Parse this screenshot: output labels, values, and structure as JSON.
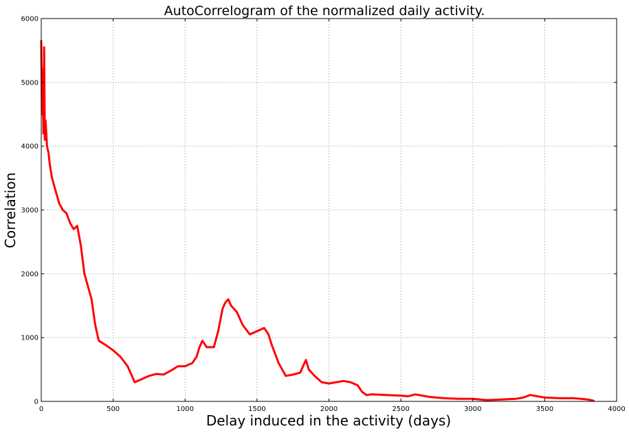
{
  "chart_data": {
    "type": "line",
    "title": "AutoCorrelogram of the normalized daily activity.",
    "xlabel": "Delay induced in the activity (days)",
    "ylabel": "Correlation",
    "xlim": [
      0,
      4000
    ],
    "ylim": [
      0,
      6000
    ],
    "xticks": [
      0,
      500,
      1000,
      1500,
      2000,
      2500,
      3000,
      3500,
      4000
    ],
    "yticks": [
      0,
      1000,
      2000,
      3000,
      4000,
      5000,
      6000
    ],
    "xtick_labels": [
      "0",
      "500",
      "1000",
      "1500",
      "2000",
      "2500",
      "3000",
      "3500",
      "4000"
    ],
    "ytick_labels": [
      "0",
      "1000",
      "2000",
      "3000",
      "4000",
      "5000",
      "6000"
    ],
    "grid": true,
    "series": [
      {
        "color": "#ff0000",
        "x": [
          0,
          5,
          10,
          15,
          20,
          25,
          30,
          40,
          50,
          60,
          75,
          100,
          125,
          150,
          175,
          200,
          225,
          250,
          275,
          300,
          325,
          350,
          375,
          400,
          450,
          500,
          550,
          600,
          650,
          700,
          750,
          800,
          850,
          900,
          950,
          1000,
          1050,
          1080,
          1100,
          1120,
          1150,
          1200,
          1230,
          1260,
          1280,
          1300,
          1320,
          1340,
          1360,
          1400,
          1450,
          1500,
          1550,
          1580,
          1600,
          1650,
          1700,
          1750,
          1800,
          1820,
          1840,
          1860,
          1880,
          1900,
          1950,
          2000,
          2050,
          2100,
          2150,
          2200,
          2230,
          2260,
          2300,
          2400,
          2500,
          2550,
          2600,
          2700,
          2800,
          2900,
          3000,
          3050,
          3100,
          3200,
          3300,
          3350,
          3400,
          3450,
          3500,
          3600,
          3700,
          3750,
          3800,
          3840
        ],
        "y": [
          5650,
          4500,
          5200,
          4200,
          5550,
          4100,
          4400,
          4000,
          3900,
          3700,
          3500,
          3300,
          3100,
          3000,
          2950,
          2800,
          2700,
          2750,
          2450,
          2000,
          1800,
          1600,
          1200,
          950,
          880,
          800,
          700,
          550,
          300,
          350,
          400,
          430,
          420,
          480,
          550,
          550,
          600,
          700,
          850,
          950,
          850,
          850,
          1100,
          1450,
          1550,
          1600,
          1500,
          1450,
          1400,
          1200,
          1050,
          1100,
          1150,
          1050,
          900,
          600,
          400,
          420,
          450,
          550,
          650,
          500,
          450,
          400,
          300,
          280,
          300,
          320,
          300,
          250,
          150,
          100,
          110,
          100,
          90,
          80,
          110,
          70,
          50,
          40,
          40,
          30,
          20,
          30,
          40,
          60,
          100,
          80,
          60,
          50,
          50,
          40,
          30,
          10
        ]
      }
    ]
  }
}
